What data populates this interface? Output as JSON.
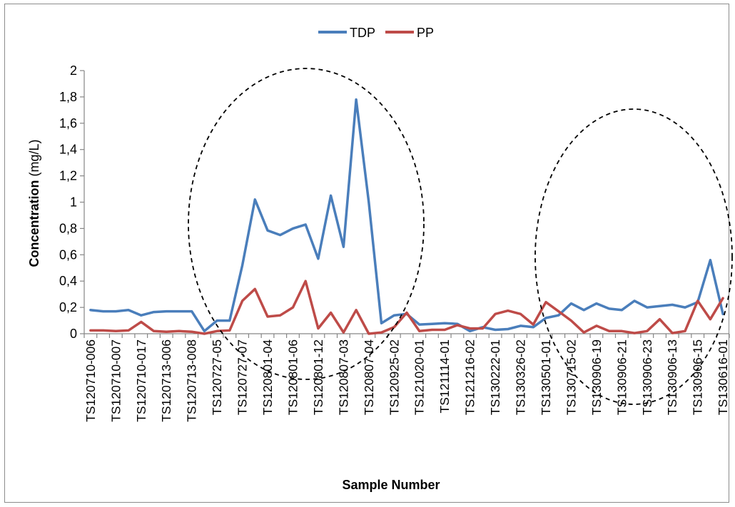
{
  "chart_data": {
    "type": "line",
    "title": "",
    "xlabel": "Sample Number",
    "ylabel_bold": "Concentration",
    "ylabel_unit": " (mg/L)",
    "ylim": [
      0,
      2
    ],
    "yticks": [
      "0",
      "0,2",
      "0,4",
      "0,6",
      "0,8",
      "1",
      "1,2",
      "1,4",
      "1,6",
      "1,8",
      "2"
    ],
    "grid": false,
    "legend_position": "top-center",
    "x": [
      "TS120710-006",
      "",
      "TS120710-007",
      "",
      "TS120710-017",
      "",
      "TS120713-006",
      "",
      "TS120713-008",
      "",
      "TS120727-05",
      "",
      "TS120727-07",
      "",
      "TS120801-04",
      "",
      "TS120801-06",
      "",
      "TS120801-12",
      "",
      "TS120807-03",
      "",
      "TS120807-04",
      "",
      "TS120925-02",
      "",
      "TS121020-01",
      "",
      "TS121114-01",
      "",
      "TS121216-02",
      "",
      "TS130222-01",
      "",
      "TS130326-02",
      "",
      "TS130501-01",
      "",
      "TS130715-02",
      "",
      "TS130906-19",
      "",
      "TS130906-21",
      "",
      "TS130906-23",
      "",
      "TS130906-13",
      "",
      "TS130906-15",
      "",
      "TS130616-01"
    ],
    "series": [
      {
        "name": "TDP",
        "color": "#4a7ebb",
        "values": [
          0.18,
          0.17,
          0.17,
          0.18,
          0.14,
          0.165,
          0.17,
          0.17,
          0.17,
          0.02,
          0.1,
          0.1,
          0.52,
          1.02,
          0.785,
          0.75,
          0.8,
          0.83,
          0.57,
          1.05,
          0.66,
          1.78,
          1.0,
          0.08,
          0.14,
          0.15,
          0.07,
          0.075,
          0.08,
          0.075,
          0.02,
          0.05,
          0.03,
          0.035,
          0.06,
          0.05,
          0.12,
          0.14,
          0.23,
          0.18,
          0.23,
          0.19,
          0.18,
          0.25,
          0.2,
          0.21,
          0.22,
          0.2,
          0.24,
          0.56,
          0.15
        ]
      },
      {
        "name": "PP",
        "color": "#be4b48",
        "values": [
          0.025,
          0.025,
          0.02,
          0.025,
          0.09,
          0.02,
          0.015,
          0.02,
          0.015,
          0.0,
          0.02,
          0.025,
          0.25,
          0.34,
          0.13,
          0.14,
          0.2,
          0.4,
          0.04,
          0.16,
          0.01,
          0.18,
          0.0,
          0.01,
          0.05,
          0.16,
          0.02,
          0.03,
          0.03,
          0.065,
          0.04,
          0.04,
          0.15,
          0.175,
          0.15,
          0.07,
          0.24,
          0.17,
          0.1,
          0.01,
          0.06,
          0.02,
          0.02,
          0.005,
          0.02,
          0.11,
          0.005,
          0.02,
          0.25,
          0.11,
          0.27
        ]
      }
    ]
  }
}
